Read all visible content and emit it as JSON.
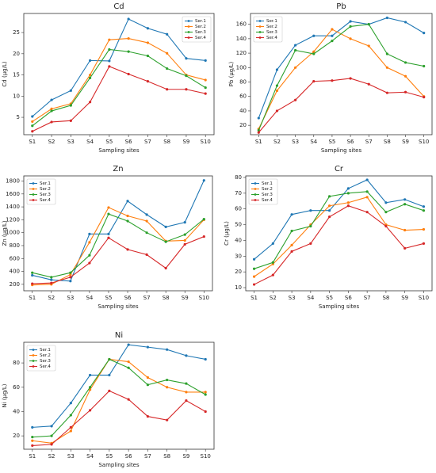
{
  "chart_data": [
    {
      "type": "line",
      "title": "Cd",
      "xlabel": "Sampling sites",
      "ylabel": "Cd (μg/L)",
      "legend": "upper right",
      "categories": [
        "S1",
        "S2",
        "S3",
        "S4",
        "S5",
        "S6",
        "S7",
        "S8",
        "S9",
        "S10"
      ],
      "ylim": [
        0.9,
        29.5
      ],
      "yticks": [
        5,
        10,
        15,
        20,
        25
      ],
      "series": [
        {
          "name": "Ser.1",
          "color": "#1f77b4",
          "values": [
            5.2,
            9.1,
            11.3,
            18.4,
            18.3,
            28.2,
            26,
            24.6,
            18.9,
            18.4
          ]
        },
        {
          "name": "Ser.2",
          "color": "#ff7f0e",
          "values": [
            4,
            7,
            8.2,
            15,
            23.3,
            23.6,
            22.6,
            20.1,
            15,
            13.8
          ]
        },
        {
          "name": "Ser.3",
          "color": "#2ca02c",
          "values": [
            3,
            6.5,
            7.8,
            14.3,
            21,
            20.5,
            19.5,
            16.5,
            14.8,
            12
          ]
        },
        {
          "name": "Ser.4",
          "color": "#d62728",
          "values": [
            1.7,
            3.9,
            4.2,
            8.6,
            17,
            15.2,
            13.5,
            11.6,
            11.6,
            10.6
          ]
        }
      ]
    },
    {
      "type": "line",
      "title": "Pb",
      "xlabel": "Sampling sites",
      "ylabel": "Pb (μg/L)",
      "legend": "upper left",
      "categories": [
        "S1",
        "S2",
        "S3",
        "S4",
        "S5",
        "S6",
        "S7",
        "S8",
        "S9",
        "S10"
      ],
      "ylim": [
        7,
        175
      ],
      "yticks": [
        20,
        40,
        60,
        80,
        100,
        120,
        140,
        160
      ],
      "series": [
        {
          "name": "Ser.1",
          "color": "#1f77b4",
          "values": [
            30,
            97,
            131,
            144,
            144,
            164,
            160,
            169,
            163,
            148
          ]
        },
        {
          "name": "Ser.2",
          "color": "#ff7f0e",
          "values": [
            15,
            68,
            100,
            122,
            153,
            140,
            130,
            100,
            88,
            60
          ]
        },
        {
          "name": "Ser.3",
          "color": "#2ca02c",
          "values": [
            13,
            75,
            124,
            119,
            137,
            157,
            160,
            119,
            107,
            102
          ]
        },
        {
          "name": "Ser.4",
          "color": "#d62728",
          "values": [
            10,
            40,
            55,
            81,
            82,
            85,
            77,
            65,
            66,
            59
          ]
        }
      ]
    },
    {
      "type": "line",
      "title": "Zn",
      "xlabel": "Sampling sites",
      "ylabel": "Zn (μg/L)",
      "legend": "upper left",
      "categories": [
        "S1",
        "S2",
        "S3",
        "S4",
        "S5",
        "S6",
        "S7",
        "S8",
        "S9",
        "S10"
      ],
      "ylim": [
        100,
        1880
      ],
      "yticks": [
        200,
        400,
        600,
        800,
        1000,
        1200,
        1400,
        1600,
        1800
      ],
      "series": [
        {
          "name": "Ser.1",
          "color": "#1f77b4",
          "values": [
            340,
            270,
            250,
            980,
            980,
            1490,
            1280,
            1090,
            1160,
            1810
          ]
        },
        {
          "name": "Ser.2",
          "color": "#ff7f0e",
          "values": [
            190,
            200,
            350,
            850,
            1390,
            1260,
            1180,
            870,
            880,
            1200
          ]
        },
        {
          "name": "Ser.3",
          "color": "#2ca02c",
          "values": [
            380,
            310,
            380,
            650,
            1290,
            1180,
            1000,
            860,
            970,
            1210
          ]
        },
        {
          "name": "Ser.4",
          "color": "#d62728",
          "values": [
            210,
            220,
            310,
            530,
            920,
            740,
            660,
            450,
            820,
            940
          ]
        }
      ]
    },
    {
      "type": "line",
      "title": "Cr",
      "xlabel": "Sampling sites",
      "ylabel": "Cr (μg/L)",
      "legend": "upper left",
      "categories": [
        "S1",
        "S2",
        "S3",
        "S4",
        "S5",
        "S6",
        "S7",
        "S8",
        "S9",
        "S10"
      ],
      "ylim": [
        8,
        81
      ],
      "yticks": [
        10,
        20,
        30,
        40,
        50,
        60,
        70,
        80
      ],
      "series": [
        {
          "name": "Ser.1",
          "color": "#1f77b4",
          "values": [
            28,
            38,
            56.5,
            59,
            59,
            73,
            78.5,
            64,
            66,
            61.5
          ]
        },
        {
          "name": "Ser.2",
          "color": "#ff7f0e",
          "values": [
            17,
            25,
            37,
            50,
            62,
            64,
            67.5,
            50,
            46.5,
            47
          ]
        },
        {
          "name": "Ser.3",
          "color": "#2ca02c",
          "values": [
            22,
            26,
            46,
            49,
            68,
            70,
            71,
            58,
            63,
            59
          ]
        },
        {
          "name": "Ser.4",
          "color": "#d62728",
          "values": [
            12,
            18,
            33,
            38,
            55,
            62,
            58,
            49,
            35,
            38
          ]
        }
      ]
    },
    {
      "type": "line",
      "title": "Ni",
      "xlabel": "Sampling sites",
      "ylabel": "Ni (μg/L)",
      "legend": "upper left",
      "categories": [
        "S1",
        "S2",
        "S3",
        "S4",
        "S5",
        "S6",
        "S7",
        "S8",
        "S9",
        "S10"
      ],
      "ylim": [
        9,
        97
      ],
      "yticks": [
        20,
        40,
        60,
        80
      ],
      "series": [
        {
          "name": "Ser.1",
          "color": "#1f77b4",
          "values": [
            27,
            28,
            47,
            70,
            70,
            95,
            93,
            91,
            86,
            83
          ]
        },
        {
          "name": "Ser.2",
          "color": "#ff7f0e",
          "values": [
            16,
            14,
            24,
            58,
            83,
            81,
            68,
            60,
            56,
            56
          ]
        },
        {
          "name": "Ser.3",
          "color": "#2ca02c",
          "values": [
            19,
            20,
            37,
            60,
            83,
            76,
            62,
            66,
            63,
            54
          ]
        },
        {
          "name": "Ser.4",
          "color": "#d62728",
          "values": [
            12,
            13,
            27,
            41,
            57,
            50,
            36,
            33,
            49,
            40
          ]
        }
      ]
    }
  ]
}
